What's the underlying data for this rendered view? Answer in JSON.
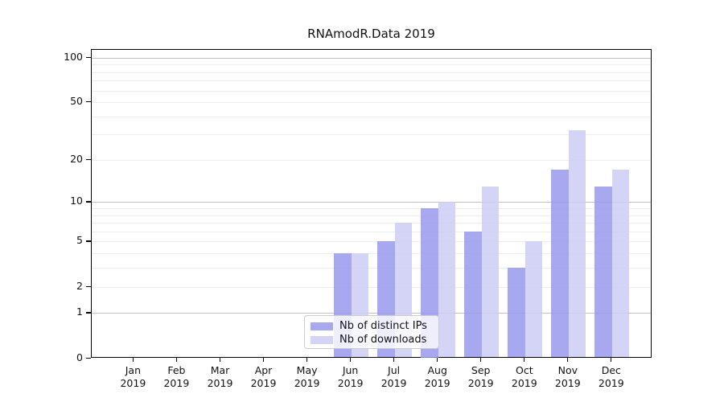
{
  "chart_data": {
    "type": "bar",
    "title": "RNAmodR.Data 2019",
    "categories": [
      "Jan",
      "Feb",
      "Mar",
      "Apr",
      "May",
      "Jun",
      "Jul",
      "Aug",
      "Sep",
      "Oct",
      "Nov",
      "Dec"
    ],
    "category_sublabel": "2019",
    "series": [
      {
        "name": "Nb of distinct IPs",
        "color": "#9999ee",
        "values": [
          0,
          0,
          0,
          0,
          0,
          4,
          5,
          9,
          6,
          3,
          17,
          13
        ]
      },
      {
        "name": "Nb of downloads",
        "color": "#ccccf4",
        "values": [
          0,
          0,
          0,
          0,
          0,
          4,
          7,
          10,
          13,
          5,
          32,
          17
        ]
      }
    ],
    "yscale": "log1p",
    "ylim": [
      0,
      113
    ],
    "yticks": [
      0,
      1,
      2,
      5,
      10,
      20,
      50,
      100
    ],
    "grid": {
      "major": [
        1,
        10,
        100
      ],
      "minor": [
        2,
        3,
        4,
        5,
        6,
        7,
        8,
        9,
        20,
        30,
        40,
        50,
        60,
        70,
        80,
        90
      ]
    },
    "legend_position": "lower center",
    "colors": {
      "spine": "#000000",
      "grid_major": "#c2c2c2",
      "grid_minor": "#ededed",
      "text": "#111111",
      "background": "#ffffff"
    }
  }
}
